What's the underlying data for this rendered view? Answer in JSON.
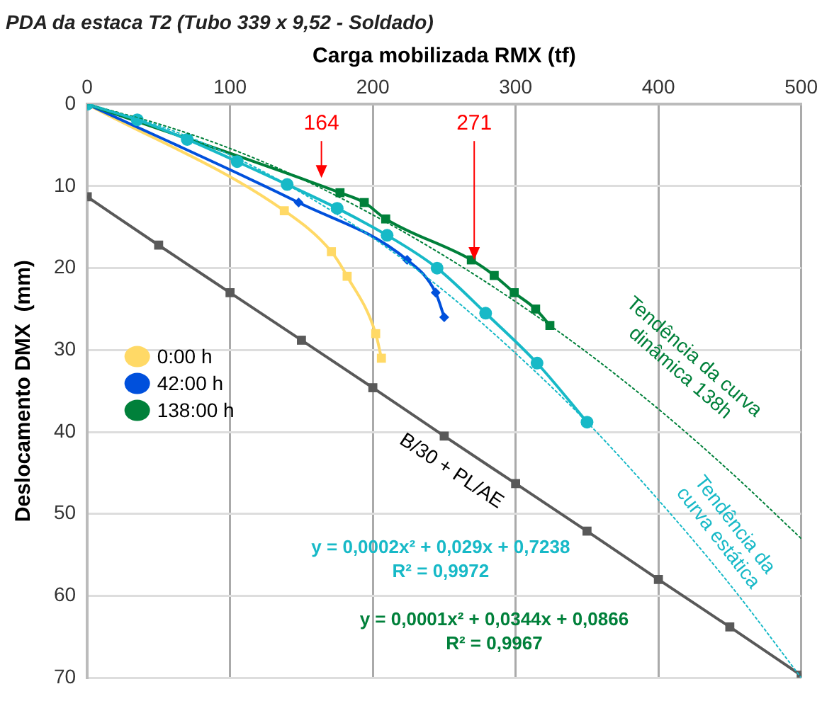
{
  "chart_data": {
    "type": "line",
    "title": "PDA da estaca T2 (Tubo 339 x 9,52 - Soldado)",
    "xlabel": "Carga mobilizada RMX (tf)",
    "ylabel": "Deslocamento DMX  (mm)",
    "xlim": [
      0,
      500
    ],
    "xticks": [
      0,
      100,
      200,
      300,
      400,
      500
    ],
    "ylim": [
      70,
      0
    ],
    "yticks": [
      0,
      10,
      20,
      30,
      40,
      50,
      60,
      70
    ],
    "grid": true,
    "legend": "left",
    "line_style": "solid",
    "series": [
      {
        "name": "0:00 h",
        "color": "#ffd966",
        "marker": "square",
        "x": [
          0,
          138,
          171,
          182,
          202,
          206
        ],
        "values": [
          0,
          13,
          18,
          21,
          28,
          31
        ]
      },
      {
        "name": "42:00 h",
        "color": "#0050dc",
        "marker": "diamond",
        "x": [
          0,
          148,
          224,
          244,
          250
        ],
        "values": [
          0,
          12,
          19,
          23,
          26
        ]
      },
      {
        "name": "138:00 h",
        "color": "#00803a",
        "marker": "square",
        "x": [
          0,
          177,
          194,
          209,
          269,
          285,
          299,
          314,
          324
        ],
        "values": [
          0,
          10.8,
          12,
          14,
          19,
          20.9,
          23,
          25,
          27
        ]
      },
      {
        "color": "#17b9c7",
        "marker": "circle",
        "x": [
          0,
          35,
          70,
          105,
          140,
          175,
          210,
          245,
          279,
          315,
          350
        ],
        "values": [
          0,
          1.9,
          4.3,
          7,
          9.8,
          12.7,
          16,
          20,
          25.5,
          31.6,
          38.8
        ]
      },
      {
        "color": "#595959",
        "marker": "square",
        "x": [
          0,
          50,
          100,
          150,
          200,
          250,
          300,
          350,
          400,
          450,
          500
        ],
        "values": [
          11.3,
          17.2,
          23,
          28.8,
          34.6,
          40.5,
          46.3,
          52.1,
          58,
          63.8,
          69.7
        ]
      },
      {
        "color": "#00803a",
        "marker": "none",
        "line_style": "dotted",
        "x": [
          0,
          50,
          100,
          150,
          200,
          250,
          300,
          350,
          400,
          450,
          500
        ],
        "values": [
          0,
          2.4,
          5.4,
          9.1,
          13.5,
          18.5,
          24.1,
          30.3,
          37.2,
          44.8,
          53
        ]
      },
      {
        "color": "#17b9c7",
        "marker": "none",
        "line_style": "dotted",
        "x": [
          0,
          50,
          100,
          150,
          200,
          250,
          300,
          350,
          400,
          450,
          500
        ],
        "values": [
          0,
          2.6,
          6.2,
          10.8,
          16.3,
          22.8,
          30.4,
          38.8,
          48.3,
          58.6,
          70
        ]
      }
    ],
    "annotations": [
      {
        "text": "164",
        "x": 164,
        "y": 9
      },
      {
        "text": "271",
        "x": 271,
        "y": 19
      },
      "B/30 + PL/AE",
      "Tendência da curva\ndinâmica 138h",
      "Tendência da\ncurva estática",
      "y = 0,0002x² + 0,029x + 0,7238\nR² = 0,9972",
      "y = 0,0001x² + 0,0344x + 0,0866\nR² = 0,9967"
    ]
  }
}
